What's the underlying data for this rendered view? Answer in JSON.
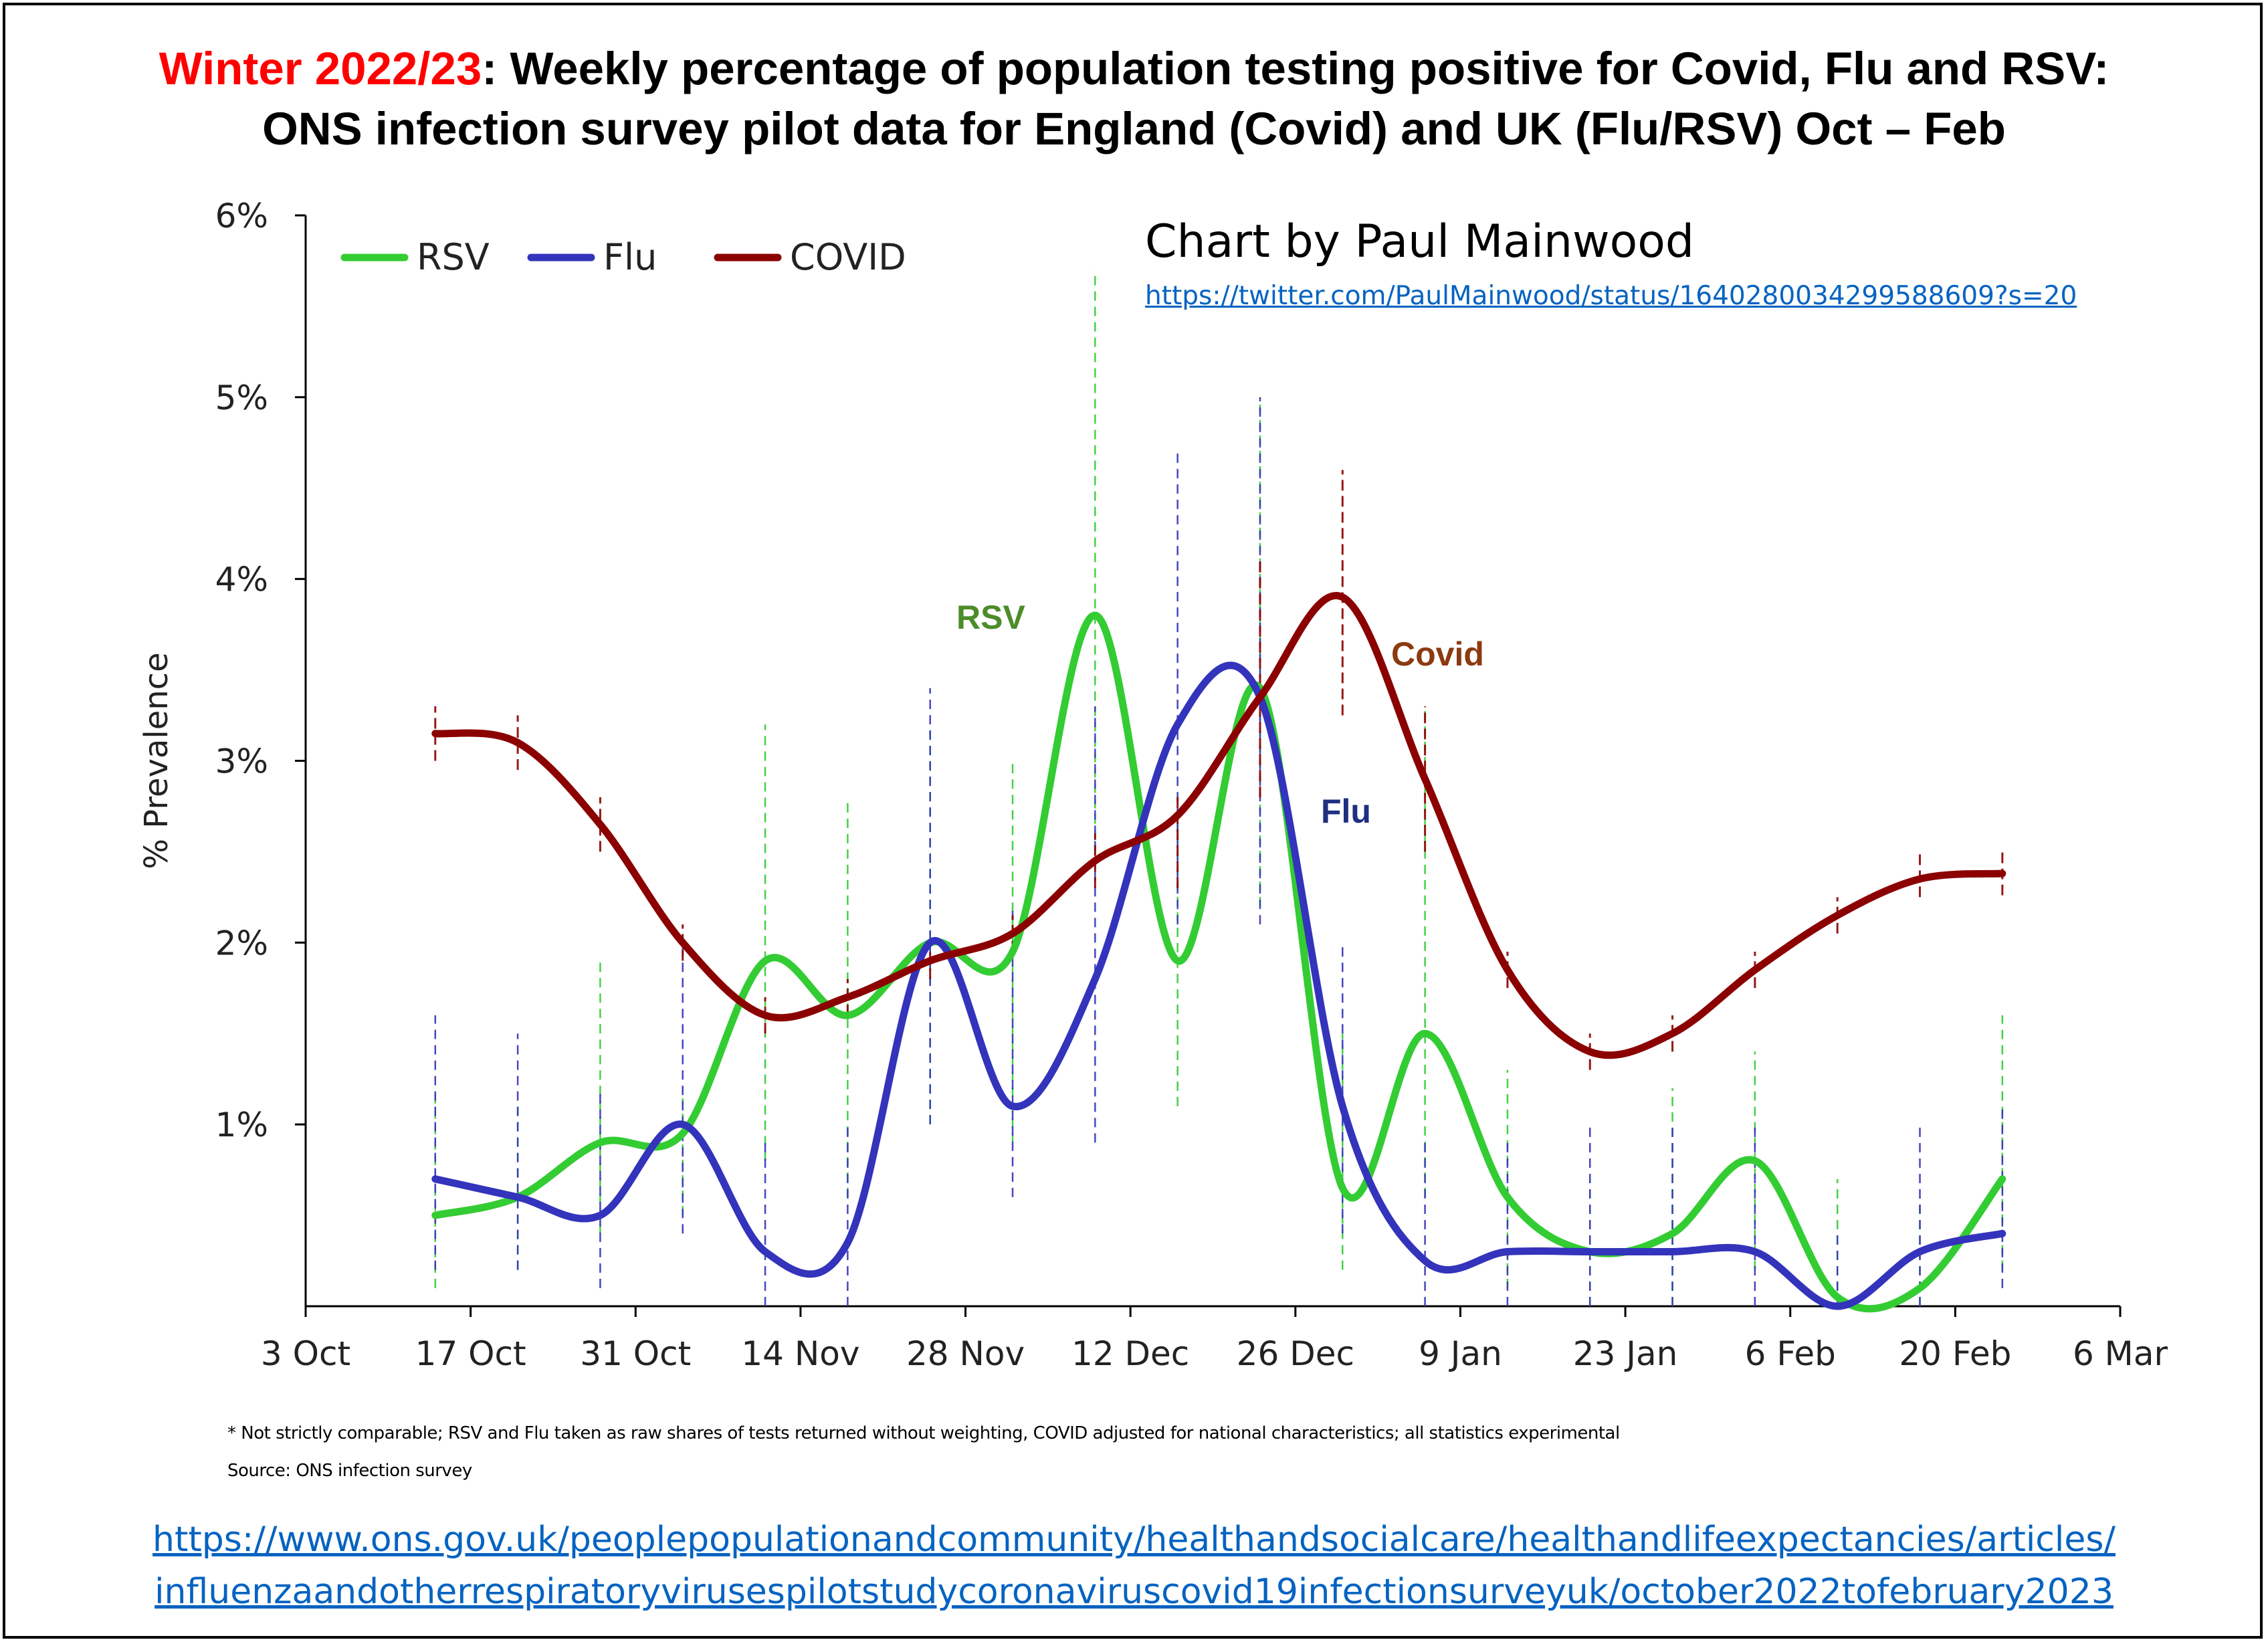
{
  "title": {
    "accent": "Winter 2022/23",
    "line1_rest": ": Weekly percentage of population testing positive for Covid, Flu and RSV:",
    "line2": "ONS infection survey pilot data for England (Covid) and UK (Flu/RSV) Oct – Feb"
  },
  "credit": {
    "text": "Chart by Paul Mainwood",
    "link": "https://twitter.com/PaulMainwood/status/1640280034299588609?s=20"
  },
  "footnote": "* Not strictly comparable; RSV and Flu taken as raw shares of tests returned without weighting, COVID adjusted for national characteristics; all statistics experimental",
  "source": "Source: ONS infection survey",
  "bottom_links": [
    "https://www.ons.gov.uk/peoplepopulationandcommunity/healthandsocialcare/healthandlifeexpectancies/articles/",
    "influenzaandotherrespiratoryvirusespilotstudycoronaviruscovid19infectionsurveyuk/october2022tofebruary2023"
  ],
  "colors": {
    "title_accent": "#ff0000",
    "rsv": "#33cc33",
    "flu": "#3333bb",
    "covid": "#8b0000",
    "rsv_label": "#4d8c2a",
    "flu_label": "#1f3080",
    "covid_label": "#8b3a10",
    "link": "#0563c1"
  },
  "chart_data": {
    "type": "line",
    "title": "",
    "xlabel": "",
    "ylabel": "% Prevalence",
    "x_ticks": [
      "3 Oct",
      "17 Oct",
      "31 Oct",
      "14 Nov",
      "28 Nov",
      "12 Dec",
      "26 Dec",
      "9 Jan",
      "23 Jan",
      "6 Feb",
      "20 Feb",
      "6 Mar"
    ],
    "y_ticks": [
      "1%",
      "2%",
      "3%",
      "4%",
      "5%",
      "6%"
    ],
    "ylim": [
      0,
      6
    ],
    "grid": false,
    "legend_position": "top-left",
    "x": [
      "2022-10-14",
      "2022-10-21",
      "2022-10-28",
      "2022-11-04",
      "2022-11-11",
      "2022-11-18",
      "2022-11-25",
      "2022-12-02",
      "2022-12-09",
      "2022-12-16",
      "2022-12-23",
      "2022-12-30",
      "2023-01-06",
      "2023-01-13",
      "2023-01-20",
      "2023-01-27",
      "2023-02-03",
      "2023-02-10",
      "2023-02-17",
      "2023-02-24"
    ],
    "series": [
      {
        "name": "RSV",
        "values": [
          0.5,
          0.6,
          0.9,
          0.95,
          1.9,
          1.6,
          2.0,
          1.95,
          3.8,
          1.9,
          3.4,
          0.65,
          1.5,
          0.6,
          0.3,
          0.4,
          0.8,
          0.05,
          0.1,
          0.7
        ],
        "ci_high": [
          1.2,
          1.1,
          1.9,
          1.2,
          3.2,
          2.8,
          3.2,
          3.0,
          5.7,
          2.7,
          5.0,
          1.5,
          3.3,
          1.3,
          0.7,
          1.2,
          1.4,
          0.7,
          0.6,
          1.6
        ],
        "ci_low": [
          0.1,
          0.2,
          0.4,
          0.5,
          0.8,
          0.6,
          1.0,
          0.9,
          2.4,
          1.1,
          2.2,
          0.2,
          0.6,
          0.1,
          0.0,
          0.0,
          0.2,
          0.0,
          0.0,
          0.2
        ]
      },
      {
        "name": "Flu",
        "values": [
          0.7,
          0.6,
          0.5,
          1.0,
          0.3,
          0.35,
          2.0,
          1.1,
          1.8,
          3.2,
          3.35,
          1.1,
          0.25,
          0.3,
          0.3,
          0.3,
          0.3,
          0.0,
          0.3,
          0.4
        ],
        "ci_high": [
          1.6,
          1.5,
          1.2,
          2.0,
          0.9,
          1.0,
          3.4,
          2.2,
          3.3,
          4.7,
          5.0,
          2.0,
          0.9,
          0.9,
          1.0,
          1.0,
          1.0,
          0.4,
          1.0,
          1.1
        ],
        "ci_low": [
          0.2,
          0.2,
          0.1,
          0.4,
          0.0,
          0.0,
          1.0,
          0.6,
          0.9,
          2.1,
          2.1,
          0.4,
          0.0,
          0.0,
          0.0,
          0.0,
          0.0,
          0.0,
          0.0,
          0.1
        ]
      },
      {
        "name": "COVID",
        "values": [
          3.15,
          3.1,
          2.65,
          2.0,
          1.6,
          1.7,
          1.9,
          2.05,
          2.45,
          2.7,
          3.35,
          3.9,
          2.9,
          1.85,
          1.4,
          1.5,
          1.85,
          2.15,
          2.35,
          2.38
        ],
        "ci_high": [
          3.3,
          3.25,
          2.8,
          2.1,
          1.7,
          1.8,
          2.0,
          2.15,
          2.6,
          2.8,
          4.1,
          4.6,
          3.3,
          1.95,
          1.5,
          1.6,
          1.95,
          2.25,
          2.5,
          2.5
        ],
        "ci_low": [
          3.0,
          2.95,
          2.5,
          1.9,
          1.5,
          1.6,
          1.8,
          1.95,
          2.3,
          2.3,
          2.8,
          3.25,
          2.5,
          1.75,
          1.3,
          1.4,
          1.75,
          2.05,
          2.25,
          2.26
        ]
      }
    ],
    "annotations": [
      {
        "text": "RSV",
        "series": "RSV"
      },
      {
        "text": "Covid",
        "series": "COVID"
      },
      {
        "text": "Flu",
        "series": "Flu"
      }
    ]
  }
}
